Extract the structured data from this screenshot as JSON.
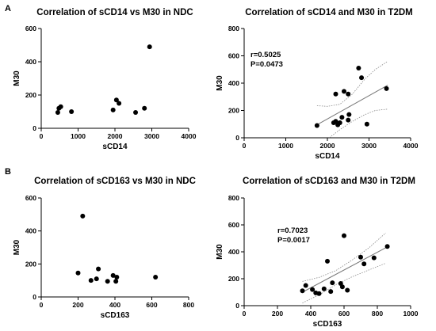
{
  "panel_labels": [
    "A",
    "B"
  ],
  "chart_data": [
    {
      "type": "scatter",
      "title": "Correlation of  sCD14 vs M30 in NDC",
      "xlabel": "sCD14",
      "ylabel": "M30",
      "xlim": [
        0,
        4000
      ],
      "ylim": [
        0,
        600
      ],
      "xticks": [
        0,
        1000,
        2000,
        3000,
        4000
      ],
      "yticks": [
        0,
        200,
        400,
        600
      ],
      "points": [
        {
          "x": 450,
          "y": 95
        },
        {
          "x": 480,
          "y": 120
        },
        {
          "x": 530,
          "y": 130
        },
        {
          "x": 820,
          "y": 100
        },
        {
          "x": 1950,
          "y": 110
        },
        {
          "x": 2040,
          "y": 170
        },
        {
          "x": 2110,
          "y": 150
        },
        {
          "x": 2560,
          "y": 95
        },
        {
          "x": 2800,
          "y": 120
        },
        {
          "x": 2940,
          "y": 490
        }
      ]
    },
    {
      "type": "scatter",
      "title": "Correlation of sCD14 and M30 in T2DM",
      "xlabel": "sCD14",
      "ylabel": "M30",
      "xlim": [
        0,
        4000
      ],
      "ylim": [
        0,
        800
      ],
      "xticks": [
        0,
        1000,
        2000,
        3000,
        4000
      ],
      "yticks": [
        0,
        200,
        400,
        600,
        800
      ],
      "stats": [
        "r=0.5025",
        "P=0.0473"
      ],
      "regression": {
        "x0": 1750,
        "y0": 95,
        "x1": 3450,
        "y1": 385
      },
      "ci_upper": [
        [
          1750,
          235
        ],
        [
          2000,
          230
        ],
        [
          2300,
          245
        ],
        [
          2600,
          320
        ],
        [
          2900,
          430
        ],
        [
          3150,
          500
        ],
        [
          3450,
          560
        ]
      ],
      "ci_lower": [
        [
          1750,
          -50
        ],
        [
          2000,
          -10
        ],
        [
          2300,
          60
        ],
        [
          2600,
          120
        ],
        [
          2900,
          170
        ],
        [
          3150,
          200
        ],
        [
          3450,
          210
        ]
      ],
      "points": [
        {
          "x": 1750,
          "y": 90
        },
        {
          "x": 2150,
          "y": 110
        },
        {
          "x": 2200,
          "y": 120
        },
        {
          "x": 2200,
          "y": 320
        },
        {
          "x": 2250,
          "y": 95
        },
        {
          "x": 2300,
          "y": 110
        },
        {
          "x": 2350,
          "y": 150
        },
        {
          "x": 2400,
          "y": 340
        },
        {
          "x": 2500,
          "y": 320
        },
        {
          "x": 2500,
          "y": 130
        },
        {
          "x": 2520,
          "y": 170
        },
        {
          "x": 2750,
          "y": 510
        },
        {
          "x": 2820,
          "y": 440
        },
        {
          "x": 2950,
          "y": 100
        },
        {
          "x": 3420,
          "y": 360
        }
      ]
    },
    {
      "type": "scatter",
      "title": "Correlation of sCD163 vs M30 in NDC",
      "xlabel": "sCD163",
      "ylabel": "M30",
      "xlim": [
        0,
        800
      ],
      "ylim": [
        0,
        600
      ],
      "xticks": [
        0,
        200,
        400,
        600,
        800
      ],
      "yticks": [
        0,
        200,
        400,
        600
      ],
      "points": [
        {
          "x": 200,
          "y": 145
        },
        {
          "x": 225,
          "y": 490
        },
        {
          "x": 270,
          "y": 100
        },
        {
          "x": 300,
          "y": 110
        },
        {
          "x": 310,
          "y": 170
        },
        {
          "x": 360,
          "y": 95
        },
        {
          "x": 390,
          "y": 130
        },
        {
          "x": 405,
          "y": 95
        },
        {
          "x": 410,
          "y": 120
        },
        {
          "x": 620,
          "y": 120
        }
      ]
    },
    {
      "type": "scatter",
      "title": "Correlation of sCD163 and M30 in T2DM",
      "xlabel": "sCD163",
      "ylabel": "M30",
      "xlim": [
        0,
        1000
      ],
      "ylim": [
        0,
        800
      ],
      "xticks": [
        0,
        200,
        400,
        600,
        800,
        1000
      ],
      "yticks": [
        0,
        200,
        400,
        600,
        800
      ],
      "stats": [
        "r=0.7023",
        "P=0.0017"
      ],
      "regression": {
        "x0": 350,
        "y0": 100,
        "x1": 850,
        "y1": 430
      },
      "ci_upper": [
        [
          350,
          180
        ],
        [
          450,
          210
        ],
        [
          550,
          260
        ],
        [
          650,
          340
        ],
        [
          750,
          430
        ],
        [
          850,
          540
        ]
      ],
      "ci_lower": [
        [
          350,
          20
        ],
        [
          450,
          80
        ],
        [
          550,
          155
        ],
        [
          650,
          215
        ],
        [
          750,
          265
        ],
        [
          850,
          315
        ]
      ],
      "points": [
        {
          "x": 350,
          "y": 110
        },
        {
          "x": 370,
          "y": 150
        },
        {
          "x": 410,
          "y": 120
        },
        {
          "x": 430,
          "y": 95
        },
        {
          "x": 450,
          "y": 90
        },
        {
          "x": 480,
          "y": 125
        },
        {
          "x": 500,
          "y": 330
        },
        {
          "x": 520,
          "y": 105
        },
        {
          "x": 530,
          "y": 170
        },
        {
          "x": 580,
          "y": 165
        },
        {
          "x": 590,
          "y": 140
        },
        {
          "x": 600,
          "y": 520
        },
        {
          "x": 620,
          "y": 115
        },
        {
          "x": 700,
          "y": 360
        },
        {
          "x": 720,
          "y": 310
        },
        {
          "x": 780,
          "y": 355
        },
        {
          "x": 860,
          "y": 440
        }
      ]
    }
  ]
}
